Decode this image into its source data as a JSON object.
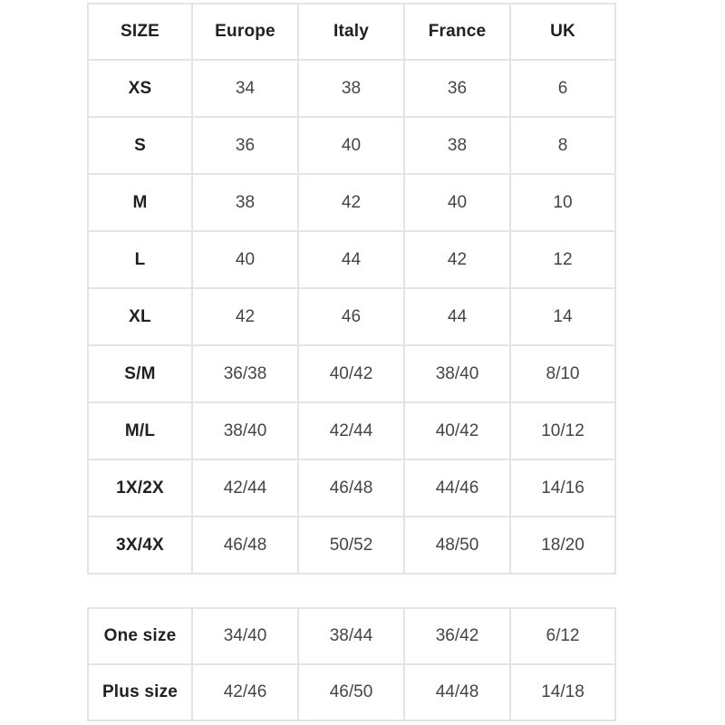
{
  "colors": {
    "background": "#ffffff",
    "border": "#e4e4e4",
    "header_text": "#212121",
    "cell_text": "#454545"
  },
  "main_table": {
    "columns": [
      "SIZE",
      "Europe",
      "Italy",
      "France",
      "UK"
    ],
    "rows": [
      [
        "XS",
        "34",
        "38",
        "36",
        "6"
      ],
      [
        "S",
        "36",
        "40",
        "38",
        "8"
      ],
      [
        "M",
        "38",
        "42",
        "40",
        "10"
      ],
      [
        "L",
        "40",
        "44",
        "42",
        "12"
      ],
      [
        "XL",
        "42",
        "46",
        "44",
        "14"
      ],
      [
        "S/M",
        "36/38",
        "40/42",
        "38/40",
        "8/10"
      ],
      [
        "M/L",
        "38/40",
        "42/44",
        "40/42",
        "10/12"
      ],
      [
        "1X/2X",
        "42/44",
        "46/48",
        "44/46",
        "14/16"
      ],
      [
        "3X/4X",
        "46/48",
        "50/52",
        "48/50",
        "18/20"
      ]
    ]
  },
  "secondary_table": {
    "rows": [
      [
        "One size",
        "34/40",
        "38/44",
        "36/42",
        "6/12"
      ],
      [
        "Plus size",
        "42/46",
        "46/50",
        "44/48",
        "14/18"
      ]
    ]
  }
}
